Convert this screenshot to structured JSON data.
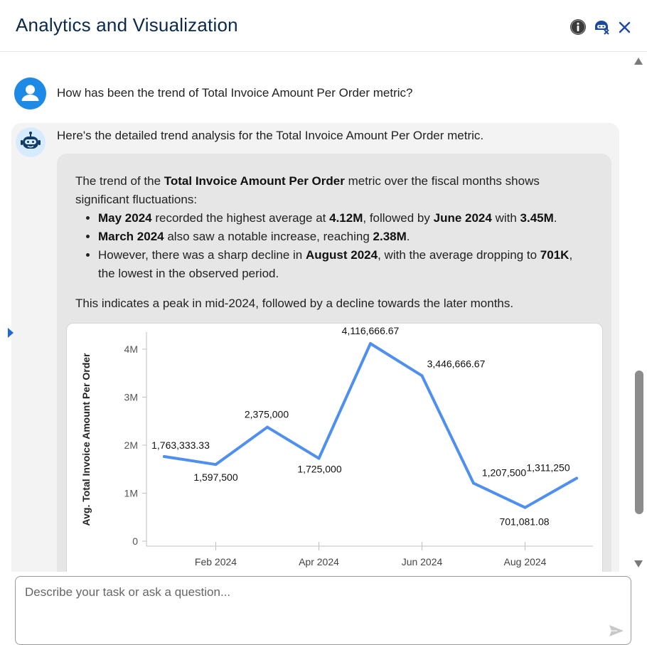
{
  "header": {
    "title": "Analytics and Visualization",
    "icons": [
      "info-icon",
      "bot-tools-icon",
      "close-icon"
    ]
  },
  "conversation": {
    "user_question": "How has been the trend of Total Invoice Amount Per Order metric?",
    "bot_intro": "Here's the detailed trend analysis for the Total Invoice Amount Per Order metric.",
    "answer": {
      "p1_a": "The trend of the ",
      "p1_b": "Total Invoice Amount Per Order",
      "p1_c": " metric over the fiscal months shows significant fluctuations:",
      "bullets": [
        {
          "a": "May 2024",
          "b": " recorded the highest average at ",
          "c": "4.12M",
          "d": ", followed by ",
          "e": "June 2024",
          "f": " with ",
          "g": "3.45M",
          "h": "."
        },
        {
          "a": "March 2024",
          "b": " also saw a notable increase, reaching ",
          "c": "2.38M",
          "d": "."
        },
        {
          "a": "However, there was a sharp decline in ",
          "b": "August 2024",
          "c": ", with the average dropping to ",
          "d": "701K",
          "e": ", the lowest in the observed period."
        }
      ],
      "conclusion": "This indicates a peak in mid-2024, followed by a decline towards the later months."
    }
  },
  "input": {
    "placeholder": "Describe your task or ask a question..."
  },
  "colors": {
    "title": "#0b2a4a",
    "accent": "#1f8ae6",
    "line": "#4f8ff0"
  },
  "chart_data": {
    "type": "line",
    "title": "",
    "xlabel": "",
    "ylabel": "Avg. Total Invoice Amount Per Order",
    "ylim": [
      0,
      4500000
    ],
    "yticks": [
      0,
      1000000,
      2000000,
      3000000,
      4000000
    ],
    "yticklabels": [
      "0",
      "1M",
      "2M",
      "3M",
      "4M"
    ],
    "x_tick_labels": [
      "Feb 2024",
      "Apr 2024",
      "Jun 2024",
      "Aug 2024"
    ],
    "x": [
      "Jan 2024",
      "Feb 2024",
      "Mar 2024",
      "Apr 2024",
      "May 2024",
      "Jun 2024",
      "Jul 2024",
      "Aug 2024",
      "Sep 2024"
    ],
    "values": [
      1763333.33,
      1597500,
      2375000,
      1725000,
      4116666.67,
      3446666.67,
      1207500,
      701081.08,
      1311250
    ],
    "labels": [
      "1,763,333.33",
      "1,597,500",
      "2,375,000",
      "1,725,000",
      "4,116,666.67",
      "3,446,666.67",
      "1,207,500",
      "701,081.08",
      "1,311,250"
    ],
    "grid": false,
    "legend": "none"
  }
}
